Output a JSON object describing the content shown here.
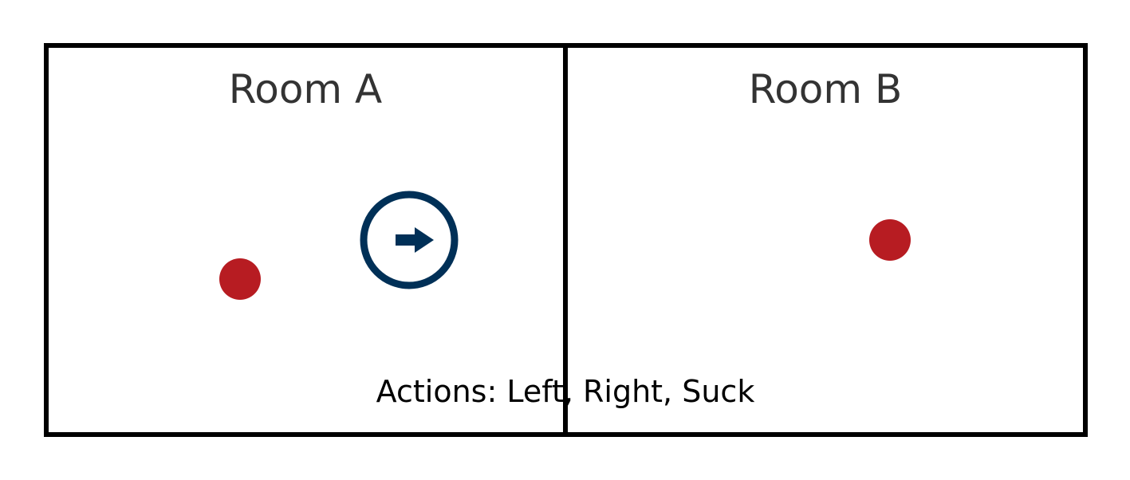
{
  "rooms": [
    {
      "label": "Room A"
    },
    {
      "label": "Room B"
    }
  ],
  "actions_text": "Actions: Left, Right, Suck",
  "agent": {
    "icon": "vacuum-agent-icon",
    "direction": "right",
    "color": "#003057"
  },
  "dirt": {
    "icon": "dirt-dot",
    "color": "#b71c22"
  },
  "colors": {
    "border": "#000000",
    "label": "#333333"
  }
}
